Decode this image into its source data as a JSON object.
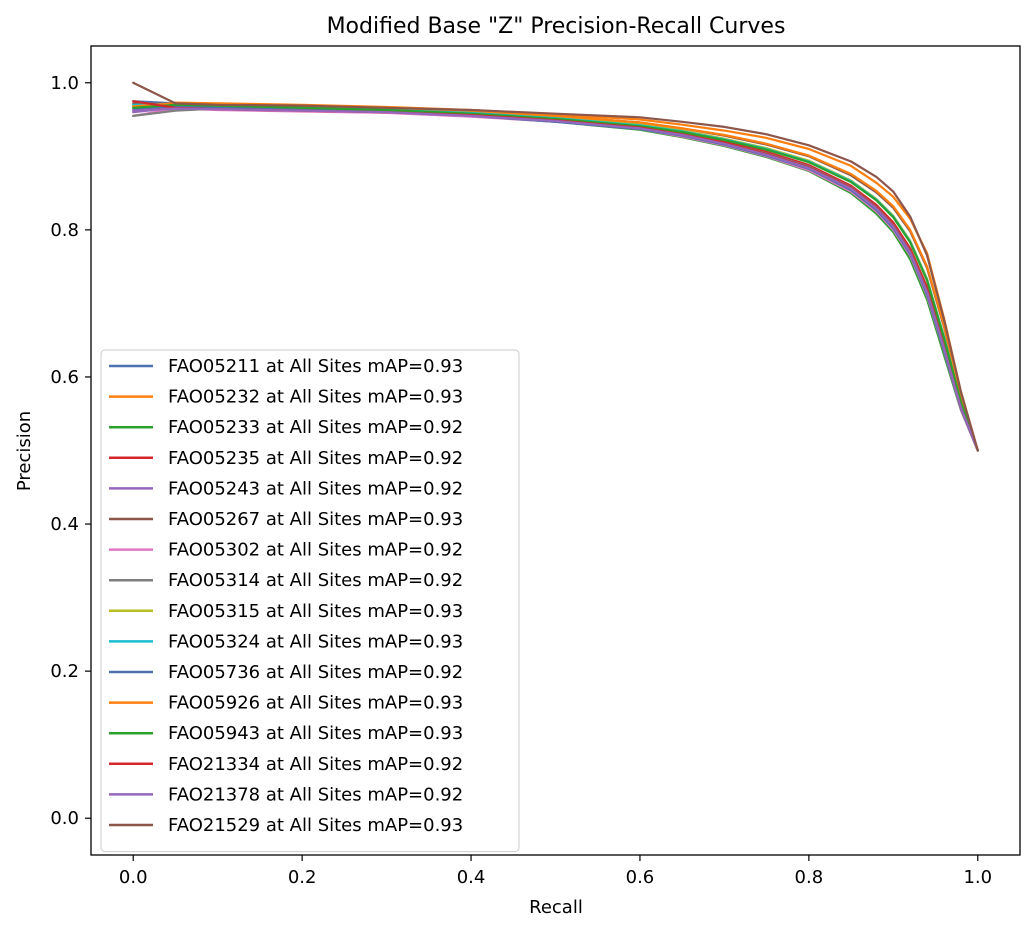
{
  "chart_data": {
    "type": "line",
    "title": "Modified Base \"Z\" Precision-Recall Curves",
    "xlabel": "Recall",
    "ylabel": "Precision",
    "xlim": [
      -0.05,
      1.05
    ],
    "ylim": [
      -0.05,
      1.05
    ],
    "xticks": [
      "0.0",
      "0.2",
      "0.4",
      "0.6",
      "0.8",
      "1.0"
    ],
    "yticks": [
      "0.0",
      "0.2",
      "0.4",
      "0.6",
      "0.8",
      "1.0"
    ],
    "grid": false,
    "legend_position": "lower-left",
    "x": [
      0,
      0.05,
      0.1,
      0.2,
      0.3,
      0.4,
      0.5,
      0.6,
      0.65,
      0.7,
      0.75,
      0.8,
      0.85,
      0.88,
      0.9,
      0.92,
      0.94,
      0.96,
      0.98,
      1.0
    ],
    "series": [
      {
        "name": "FAO05211 at All Sites mAP=0.93",
        "color": "#4c72b0",
        "values": [
          0.975,
          0.972,
          0.97,
          0.966,
          0.962,
          0.956,
          0.948,
          0.937,
          0.928,
          0.918,
          0.905,
          0.887,
          0.858,
          0.832,
          0.808,
          0.772,
          0.718,
          0.64,
          0.56,
          0.5
        ]
      },
      {
        "name": "FAO05232 at All Sites mAP=0.93",
        "color": "#ff7f0e",
        "values": [
          0.965,
          0.973,
          0.972,
          0.97,
          0.967,
          0.963,
          0.957,
          0.95,
          0.943,
          0.935,
          0.925,
          0.91,
          0.887,
          0.864,
          0.845,
          0.815,
          0.768,
          0.68,
          0.58,
          0.5
        ]
      },
      {
        "name": "FAO05233 at All Sites mAP=0.92",
        "color": "#2ca02c",
        "values": [
          0.97,
          0.97,
          0.968,
          0.964,
          0.96,
          0.955,
          0.947,
          0.936,
          0.926,
          0.914,
          0.899,
          0.88,
          0.85,
          0.822,
          0.797,
          0.76,
          0.705,
          0.63,
          0.555,
          0.5
        ]
      },
      {
        "name": "FAO05235 at All Sites mAP=0.92",
        "color": "#d62728",
        "values": [
          0.962,
          0.968,
          0.965,
          0.963,
          0.961,
          0.957,
          0.95,
          0.94,
          0.931,
          0.92,
          0.906,
          0.888,
          0.86,
          0.834,
          0.81,
          0.775,
          0.722,
          0.645,
          0.562,
          0.5
        ]
      },
      {
        "name": "FAO05243 at All Sites mAP=0.92",
        "color": "#9467bd",
        "values": [
          0.96,
          0.966,
          0.964,
          0.962,
          0.96,
          0.955,
          0.948,
          0.938,
          0.929,
          0.917,
          0.902,
          0.884,
          0.855,
          0.828,
          0.803,
          0.768,
          0.714,
          0.638,
          0.558,
          0.5
        ]
      },
      {
        "name": "FAO05267 at All Sites mAP=0.93",
        "color": "#8c564b",
        "values": [
          0.972,
          0.971,
          0.969,
          0.967,
          0.965,
          0.961,
          0.955,
          0.946,
          0.938,
          0.928,
          0.916,
          0.9,
          0.874,
          0.851,
          0.83,
          0.798,
          0.748,
          0.668,
          0.575,
          0.5
        ]
      },
      {
        "name": "FAO05302 at All Sites mAP=0.92",
        "color": "#e377c2",
        "values": [
          0.955,
          0.965,
          0.963,
          0.961,
          0.959,
          0.954,
          0.947,
          0.937,
          0.927,
          0.915,
          0.9,
          0.881,
          0.852,
          0.825,
          0.8,
          0.765,
          0.71,
          0.635,
          0.556,
          0.5
        ]
      },
      {
        "name": "FAO05314 at All Sites mAP=0.92",
        "color": "#7f7f7f",
        "values": [
          0.955,
          0.962,
          0.965,
          0.963,
          0.961,
          0.956,
          0.949,
          0.939,
          0.93,
          0.918,
          0.904,
          0.886,
          0.858,
          0.831,
          0.806,
          0.771,
          0.717,
          0.641,
          0.559,
          0.5
        ]
      },
      {
        "name": "FAO05315 at All Sites mAP=0.93",
        "color": "#bcbd22",
        "values": [
          0.968,
          0.972,
          0.97,
          0.968,
          0.965,
          0.96,
          0.953,
          0.943,
          0.935,
          0.924,
          0.911,
          0.894,
          0.867,
          0.842,
          0.819,
          0.785,
          0.733,
          0.655,
          0.568,
          0.5
        ]
      },
      {
        "name": "FAO05324 at All Sites mAP=0.93",
        "color": "#17becf",
        "values": [
          0.97,
          0.971,
          0.97,
          0.967,
          0.964,
          0.959,
          0.952,
          0.942,
          0.934,
          0.923,
          0.91,
          0.893,
          0.866,
          0.841,
          0.818,
          0.784,
          0.732,
          0.654,
          0.567,
          0.5
        ]
      },
      {
        "name": "FAO05736 at All Sites mAP=0.92",
        "color": "#4c72b0",
        "values": [
          0.965,
          0.968,
          0.966,
          0.963,
          0.96,
          0.955,
          0.947,
          0.937,
          0.928,
          0.916,
          0.901,
          0.883,
          0.854,
          0.827,
          0.802,
          0.767,
          0.712,
          0.636,
          0.557,
          0.5
        ]
      },
      {
        "name": "FAO05926 at All Sites mAP=0.93",
        "color": "#ff7f0e",
        "values": [
          0.968,
          0.972,
          0.971,
          0.969,
          0.966,
          0.962,
          0.955,
          0.946,
          0.938,
          0.929,
          0.917,
          0.901,
          0.876,
          0.853,
          0.832,
          0.8,
          0.75,
          0.67,
          0.576,
          0.5
        ]
      },
      {
        "name": "FAO05943 at All Sites mAP=0.93",
        "color": "#2ca02c",
        "values": [
          0.966,
          0.97,
          0.969,
          0.966,
          0.963,
          0.958,
          0.951,
          0.941,
          0.933,
          0.922,
          0.909,
          0.892,
          0.865,
          0.84,
          0.817,
          0.783,
          0.731,
          0.653,
          0.566,
          0.5
        ]
      },
      {
        "name": "FAO21334 at All Sites mAP=0.92",
        "color": "#d62728",
        "values": [
          0.975,
          0.966,
          0.964,
          0.962,
          0.96,
          0.956,
          0.949,
          0.939,
          0.93,
          0.918,
          0.903,
          0.885,
          0.857,
          0.83,
          0.805,
          0.77,
          0.716,
          0.64,
          0.558,
          0.5
        ]
      },
      {
        "name": "FAO21378 at All Sites mAP=0.92",
        "color": "#9467bd",
        "values": [
          0.962,
          0.965,
          0.964,
          0.962,
          0.96,
          0.955,
          0.948,
          0.938,
          0.929,
          0.917,
          0.902,
          0.884,
          0.856,
          0.829,
          0.804,
          0.769,
          0.715,
          0.639,
          0.558,
          0.5
        ]
      },
      {
        "name": "FAO21529 at All Sites mAP=0.93",
        "color": "#8c564b",
        "values": [
          1.0,
          0.972,
          0.97,
          0.969,
          0.966,
          0.963,
          0.958,
          0.953,
          0.947,
          0.94,
          0.93,
          0.915,
          0.893,
          0.872,
          0.852,
          0.818,
          0.765,
          0.678,
          0.58,
          0.5
        ]
      }
    ]
  }
}
